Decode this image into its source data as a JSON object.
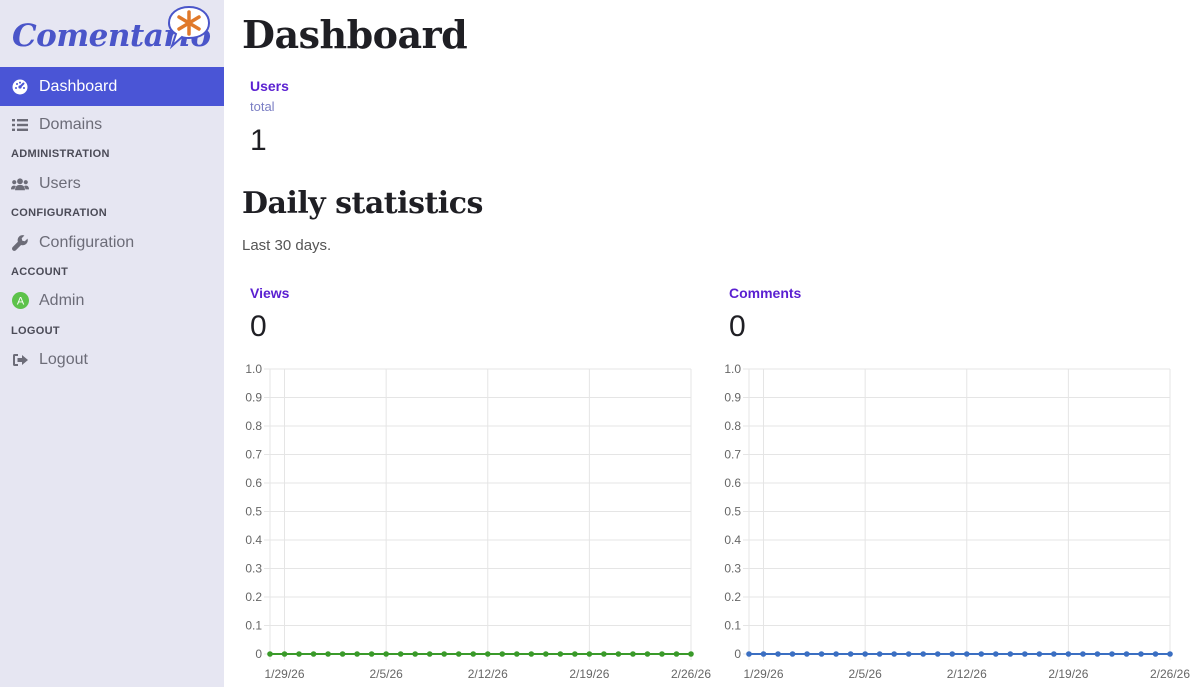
{
  "app": {
    "logo_text": "Comentario"
  },
  "sidebar": {
    "items": [
      {
        "label": "Dashboard",
        "icon": "dashboard-icon",
        "active": true
      },
      {
        "label": "Domains",
        "icon": "list-icon"
      },
      {
        "label": "Users",
        "icon": "users-icon"
      },
      {
        "label": "Configuration",
        "icon": "wrench-icon"
      },
      {
        "label": "Admin",
        "icon": "avatar-icon",
        "avatar_letter": "A"
      },
      {
        "label": "Logout",
        "icon": "logout-icon"
      }
    ],
    "sections": {
      "administration": "ADMINISTRATION",
      "configuration": "CONFIGURATION",
      "account": "ACCOUNT",
      "logout": "LOGOUT"
    }
  },
  "main": {
    "title": "Dashboard",
    "users": {
      "label": "Users",
      "sub": "total",
      "value": "1"
    },
    "daily": {
      "title": "Daily statistics",
      "subtitle": "Last 30 days."
    },
    "views": {
      "label": "Views",
      "value": "0"
    },
    "comments": {
      "label": "Comments",
      "value": "0"
    }
  },
  "colors": {
    "accent": "#4a55d6",
    "views_line": "#3a9a2a",
    "comments_line": "#3b6fc2",
    "stat_label": "#5a1fd1"
  },
  "chart_data": [
    {
      "type": "line",
      "name": "views-chart",
      "ylim": [
        0,
        1.0
      ],
      "yticks": [
        "1.0",
        "0.9",
        "0.8",
        "0.7",
        "0.6",
        "0.5",
        "0.4",
        "0.3",
        "0.2",
        "0.1",
        "0"
      ],
      "xtick_labels": [
        "1/29/26",
        "2/5/26",
        "2/12/26",
        "2/19/26",
        "2/26/26"
      ],
      "points_count": 30,
      "series": [
        {
          "values": [
            0,
            0,
            0,
            0,
            0,
            0,
            0,
            0,
            0,
            0,
            0,
            0,
            0,
            0,
            0,
            0,
            0,
            0,
            0,
            0,
            0,
            0,
            0,
            0,
            0,
            0,
            0,
            0,
            0,
            0
          ]
        }
      ],
      "grid": true
    },
    {
      "type": "line",
      "name": "comments-chart",
      "ylim": [
        0,
        1.0
      ],
      "yticks": [
        "1.0",
        "0.9",
        "0.8",
        "0.7",
        "0.6",
        "0.5",
        "0.4",
        "0.3",
        "0.2",
        "0.1",
        "0"
      ],
      "xtick_labels": [
        "1/29/26",
        "2/5/26",
        "2/12/26",
        "2/19/26",
        "2/26/26"
      ],
      "points_count": 30,
      "series": [
        {
          "values": [
            0,
            0,
            0,
            0,
            0,
            0,
            0,
            0,
            0,
            0,
            0,
            0,
            0,
            0,
            0,
            0,
            0,
            0,
            0,
            0,
            0,
            0,
            0,
            0,
            0,
            0,
            0,
            0,
            0,
            0
          ]
        }
      ],
      "grid": true
    }
  ]
}
